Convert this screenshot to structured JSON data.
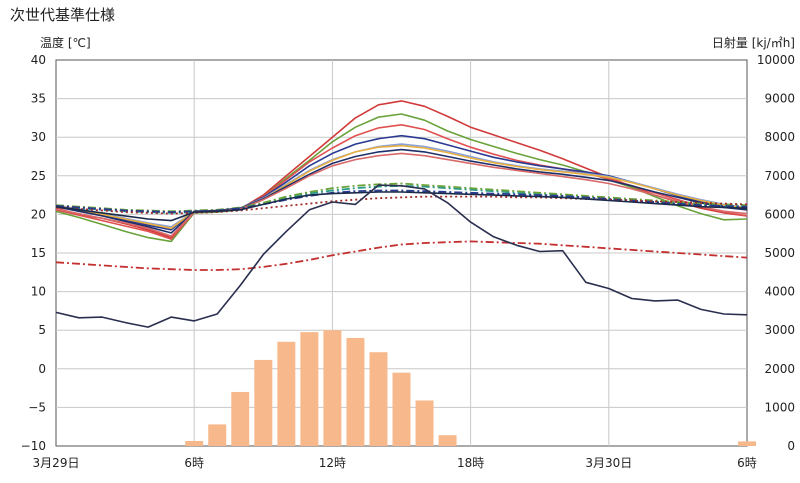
{
  "chart_data": {
    "type": "bar+line",
    "title": "次世代基準仕様",
    "ylabel_left": "温度 [℃]",
    "ylabel_right": "日射量 [kj/㎡h]",
    "ylim_left": [
      -10,
      40
    ],
    "yticks_left": [
      "40",
      "35",
      "30",
      "25",
      "20",
      "15",
      "10",
      "5",
      "0",
      "−5",
      "−10"
    ],
    "ylim_right": [
      0,
      10000
    ],
    "yticks_right": [
      "10000",
      "9000",
      "8000",
      "7000",
      "6000",
      "5000",
      "4000",
      "3000",
      "2000",
      "1000",
      "0"
    ],
    "x_hours": [
      0,
      1,
      2,
      3,
      4,
      5,
      6,
      7,
      8,
      9,
      10,
      11,
      12,
      13,
      14,
      15,
      16,
      17,
      18,
      19,
      20,
      21,
      22,
      23,
      24,
      25,
      26,
      27,
      28,
      29,
      30
    ],
    "xtick_labels": [
      {
        "hour": 0,
        "label": "3月29日"
      },
      {
        "hour": 6,
        "label": "6時"
      },
      {
        "hour": 12,
        "label": "12時"
      },
      {
        "hour": 18,
        "label": "18時"
      },
      {
        "hour": 24,
        "label": "3月30日"
      },
      {
        "hour": 30,
        "label": "6時"
      }
    ],
    "solar_radiation": {
      "color": "#f7b98c",
      "values": [
        0,
        0,
        0,
        0,
        0,
        0,
        130,
        560,
        1400,
        2230,
        2700,
        2950,
        3000,
        2800,
        2430,
        1900,
        1180,
        280,
        0,
        0,
        0,
        0,
        0,
        0,
        0,
        0,
        0,
        0,
        0,
        0,
        120
      ]
    },
    "series": [
      {
        "color": "#d23a3a",
        "style": "solid",
        "values": [
          20.8,
          20.0,
          19.5,
          18.8,
          18.0,
          17.0,
          20.3,
          20.4,
          20.7,
          22.5,
          25.0,
          27.5,
          30.0,
          32.5,
          34.2,
          34.7,
          34.0,
          32.7,
          31.3,
          30.3,
          29.3,
          28.3,
          27.2,
          26.0,
          24.8,
          23.6,
          22.5,
          21.6,
          20.8,
          20.2,
          19.8
        ]
      },
      {
        "color": "#6aa23a",
        "style": "solid",
        "values": [
          20.4,
          19.6,
          18.7,
          17.8,
          17.0,
          16.5,
          20.2,
          20.3,
          20.6,
          22.3,
          24.7,
          27.0,
          29.4,
          31.3,
          32.6,
          33.0,
          32.2,
          30.8,
          29.7,
          28.8,
          27.9,
          27.1,
          26.4,
          25.5,
          24.5,
          23.5,
          22.3,
          21.1,
          20.1,
          19.3,
          19.4
        ]
      },
      {
        "color": "#e05050",
        "style": "solid",
        "values": [
          20.6,
          19.9,
          19.2,
          18.5,
          17.8,
          16.8,
          20.3,
          20.4,
          20.7,
          22.3,
          24.5,
          26.8,
          28.6,
          30.2,
          31.2,
          31.6,
          31.0,
          29.8,
          28.7,
          27.8,
          27.0,
          26.4,
          25.9,
          25.3,
          24.6,
          23.7,
          22.8,
          21.9,
          21.0,
          20.3,
          19.8
        ]
      },
      {
        "color": "#2a3a90",
        "style": "solid",
        "values": [
          21.0,
          20.5,
          19.9,
          19.3,
          18.6,
          18.0,
          20.4,
          20.5,
          20.8,
          22.2,
          24.2,
          26.3,
          27.9,
          29.1,
          29.8,
          30.2,
          29.8,
          29.0,
          28.2,
          27.4,
          26.8,
          26.3,
          25.9,
          25.5,
          25.0,
          24.2,
          23.3,
          22.4,
          21.6,
          21.0,
          20.6
        ]
      },
      {
        "color": "#8aa0d8",
        "style": "solid",
        "values": [
          21.2,
          20.7,
          20.1,
          19.5,
          18.9,
          18.4,
          20.4,
          20.5,
          20.8,
          22.1,
          23.9,
          25.7,
          27.1,
          28.1,
          28.8,
          29.1,
          28.8,
          28.2,
          27.5,
          26.8,
          26.3,
          25.9,
          25.6,
          25.3,
          24.9,
          24.2,
          23.4,
          22.6,
          21.9,
          21.3,
          20.9
        ]
      },
      {
        "color": "#e8b040",
        "style": "solid",
        "values": [
          21.1,
          20.6,
          20.0,
          19.4,
          18.8,
          18.2,
          20.4,
          20.5,
          20.8,
          22.0,
          23.8,
          25.6,
          27.0,
          28.1,
          28.7,
          28.9,
          28.6,
          28.0,
          27.3,
          26.7,
          26.2,
          25.8,
          25.5,
          25.2,
          24.8,
          24.1,
          23.3,
          22.5,
          21.8,
          21.2,
          20.8
        ]
      },
      {
        "color": "#1f2f6a",
        "style": "solid",
        "values": [
          21.0,
          20.4,
          19.8,
          19.1,
          18.4,
          17.6,
          20.4,
          20.5,
          20.8,
          22.0,
          23.6,
          25.2,
          26.6,
          27.5,
          28.1,
          28.4,
          28.1,
          27.5,
          26.9,
          26.4,
          25.9,
          25.5,
          25.2,
          24.8,
          24.4,
          23.7,
          22.9,
          22.2,
          21.5,
          20.9,
          20.6
        ]
      },
      {
        "color": "#d86a6a",
        "style": "solid",
        "values": [
          20.7,
          20.1,
          19.5,
          18.9,
          18.2,
          17.2,
          20.3,
          20.4,
          20.7,
          21.9,
          23.4,
          25.0,
          26.3,
          27.1,
          27.6,
          27.9,
          27.6,
          27.1,
          26.6,
          26.1,
          25.7,
          25.3,
          24.9,
          24.5,
          24.0,
          23.3,
          22.5,
          21.7,
          21.0,
          20.4,
          20.1
        ]
      },
      {
        "color": "#2a9a8a",
        "style": "dashdot",
        "values": [
          21.0,
          20.8,
          20.6,
          20.4,
          20.3,
          20.2,
          20.3,
          20.5,
          20.8,
          21.4,
          22.1,
          22.7,
          23.1,
          23.4,
          23.6,
          23.7,
          23.6,
          23.4,
          23.2,
          23.0,
          22.8,
          22.6,
          22.4,
          22.2,
          22.0,
          21.8,
          21.6,
          21.4,
          21.2,
          21.1,
          21.0
        ]
      },
      {
        "color": "#6aa23a",
        "style": "dashdot",
        "values": [
          21.2,
          21.0,
          20.8,
          20.6,
          20.5,
          20.4,
          20.5,
          20.6,
          20.9,
          21.5,
          22.3,
          22.9,
          23.4,
          23.7,
          23.9,
          24.0,
          23.8,
          23.6,
          23.4,
          23.2,
          23.0,
          22.8,
          22.6,
          22.4,
          22.2,
          22.0,
          21.8,
          21.6,
          21.4,
          21.3,
          21.2
        ]
      },
      {
        "color": "#2a3a90",
        "style": "dashdot",
        "values": [
          21.1,
          20.9,
          20.7,
          20.5,
          20.4,
          20.3,
          20.4,
          20.5,
          20.8,
          21.3,
          21.9,
          22.4,
          22.8,
          23.0,
          23.1,
          23.1,
          23.0,
          22.9,
          22.8,
          22.7,
          22.6,
          22.5,
          22.4,
          22.2,
          22.0,
          21.8,
          21.6,
          21.4,
          21.2,
          21.1,
          21.0
        ]
      },
      {
        "color": "#a02a2a",
        "style": "dotted",
        "values": [
          20.9,
          20.7,
          20.5,
          20.3,
          20.2,
          20.1,
          20.2,
          20.3,
          20.5,
          20.8,
          21.1,
          21.4,
          21.7,
          21.9,
          22.1,
          22.2,
          22.3,
          22.3,
          22.3,
          22.3,
          22.2,
          22.2,
          22.1,
          22.0,
          21.9,
          21.8,
          21.7,
          21.6,
          21.5,
          21.4,
          21.3
        ]
      },
      {
        "color": "#c23030",
        "style": "dashdot",
        "values": [
          13.8,
          13.6,
          13.4,
          13.2,
          13.0,
          12.9,
          12.8,
          12.8,
          12.9,
          13.2,
          13.6,
          14.1,
          14.7,
          15.2,
          15.7,
          16.1,
          16.3,
          16.4,
          16.5,
          16.4,
          16.3,
          16.2,
          16.0,
          15.8,
          15.6,
          15.4,
          15.2,
          15.0,
          14.8,
          14.6,
          14.4
        ]
      },
      {
        "color": "#1a2a4a",
        "style": "solid",
        "values": [
          21.0,
          20.6,
          20.2,
          19.8,
          19.4,
          19.2,
          20.3,
          20.4,
          20.6,
          21.3,
          22.0,
          22.5,
          22.7,
          22.8,
          22.9,
          22.9,
          22.8,
          22.7,
          22.6,
          22.5,
          22.4,
          22.3,
          22.2,
          22.0,
          21.8,
          21.6,
          21.4,
          21.2,
          21.0,
          20.9,
          20.8
        ]
      },
      {
        "color": "#2a2f4f",
        "style": "solid",
        "values": [
          7.3,
          6.6,
          6.7,
          6.0,
          5.4,
          6.7,
          6.2,
          7.1,
          10.8,
          14.8,
          17.8,
          20.6,
          21.6,
          21.3,
          23.8,
          23.7,
          23.3,
          21.5,
          19.0,
          17.1,
          16.0,
          15.2,
          15.3,
          11.2,
          10.4,
          9.1,
          8.8,
          8.9,
          7.7,
          7.1,
          7.0
        ]
      }
    ]
  }
}
